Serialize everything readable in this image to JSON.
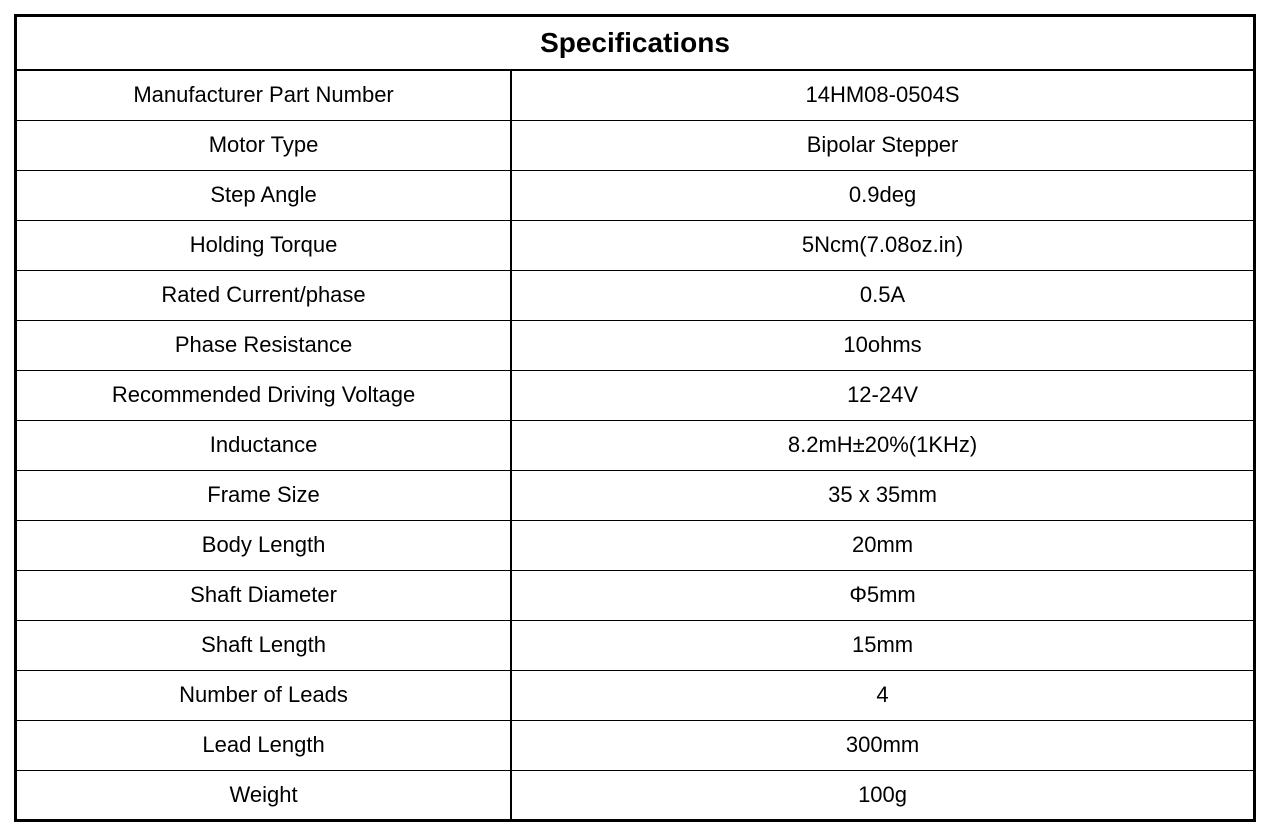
{
  "table": {
    "title": "Specifications",
    "type": "table",
    "columns": [
      "label",
      "value"
    ],
    "column_widths": [
      "40%",
      "60%"
    ],
    "alignment": "center",
    "title_fontsize": 28,
    "cell_fontsize": 22,
    "border_color": "#000000",
    "outer_border_width": 3,
    "inner_border_width": 1,
    "header_divider_width": 2,
    "column_divider_width": 2,
    "background_color": "#ffffff",
    "text_color": "#000000",
    "rows": [
      {
        "label": "Manufacturer Part Number",
        "value": "14HM08-0504S"
      },
      {
        "label": "Motor Type",
        "value": "Bipolar Stepper"
      },
      {
        "label": "Step Angle",
        "value": "0.9deg"
      },
      {
        "label": "Holding Torque",
        "value": "5Ncm(7.08oz.in)"
      },
      {
        "label": "Rated Current/phase",
        "value": "0.5A"
      },
      {
        "label": "Phase Resistance",
        "value": "10ohms"
      },
      {
        "label": "Recommended Driving Voltage",
        "value": "12-24V"
      },
      {
        "label": "Inductance",
        "value": "8.2mH±20%(1KHz)"
      },
      {
        "label": "Frame Size",
        "value": "35 x 35mm"
      },
      {
        "label": "Body Length",
        "value": "20mm"
      },
      {
        "label": "Shaft Diameter",
        "value": "Φ5mm"
      },
      {
        "label": "Shaft Length",
        "value": "15mm"
      },
      {
        "label": "Number of Leads",
        "value": "4"
      },
      {
        "label": "Lead Length",
        "value": "300mm"
      },
      {
        "label": "Weight",
        "value": "100g"
      }
    ]
  }
}
